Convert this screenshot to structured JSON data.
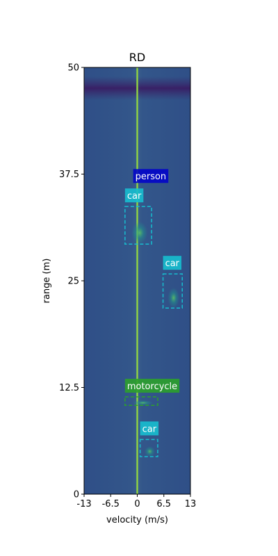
{
  "chart_data": {
    "type": "heatmap",
    "title": "RD",
    "xlabel": "velocity (m/s)",
    "ylabel": "range (m)",
    "xlim": [
      -13,
      13
    ],
    "ylim": [
      0,
      50
    ],
    "xticks": [
      -13,
      -6.5,
      0,
      6.5,
      13
    ],
    "xtick_labels": [
      "-13",
      "-6.5",
      "0",
      "6.5",
      "13"
    ],
    "yticks": [
      0,
      12.5,
      25,
      37.5,
      50
    ],
    "ytick_labels": [
      "0",
      "12.5",
      "25",
      "37.5",
      "50"
    ],
    "grid": false,
    "colormap": "viridis",
    "background_color": "#3b528b",
    "detections": [
      {
        "label": "car",
        "color": "#17becf",
        "vmin": -3,
        "vmax": 3.5,
        "rmin": 29.3,
        "rmax": 33.7,
        "label_anchor": "top-left"
      },
      {
        "label": "person",
        "color": "#0000cc",
        "vmin": -1,
        "vmax": 8,
        "rmin": 34.9,
        "rmax": 36.3,
        "label_anchor": "top-left"
      },
      {
        "label": "car",
        "color": "#17becf",
        "vmin": 6.3,
        "vmax": 11,
        "rmin": 21.8,
        "rmax": 25.8,
        "label_anchor": "top-left"
      },
      {
        "label": "motorcycle",
        "color": "#2ca02c",
        "vmin": -3,
        "vmax": 5,
        "rmin": 10.4,
        "rmax": 11.4,
        "label_anchor": "top-left"
      },
      {
        "label": "car",
        "color": "#17becf",
        "vmin": 0.7,
        "vmax": 5,
        "rmin": 4.4,
        "rmax": 6.4,
        "label_anchor": "top-left"
      }
    ]
  }
}
